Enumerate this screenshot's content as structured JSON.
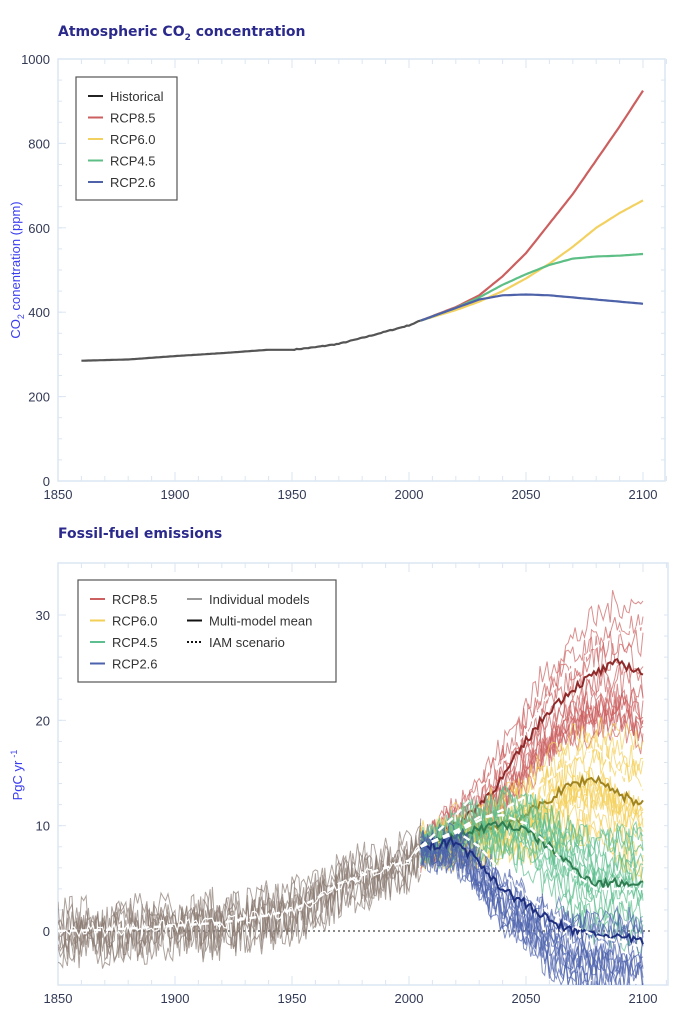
{
  "chart_data": [
    {
      "type": "line",
      "title": "Atmospheric CO",
      "title_sub": "2",
      "title_rest": " concentration",
      "xlabel": "",
      "ylabel": "CO",
      "ylabel_sub": "2",
      "ylabel_rest": " conentration (ppm)",
      "xlim": [
        1850,
        2110
      ],
      "ylim": [
        0,
        1000
      ],
      "xticks": [
        1850,
        1900,
        1950,
        2000,
        2050,
        2100
      ],
      "yticks": [
        0,
        200,
        400,
        600,
        800,
        1000
      ],
      "grid": false,
      "legend_position": "top-left",
      "series": [
        {
          "name": "Historical",
          "color": "#222222",
          "x": [
            1860,
            1880,
            1900,
            1920,
            1940,
            1950,
            1960,
            1970,
            1980,
            1990,
            2000,
            2005
          ],
          "y": [
            285,
            288,
            296,
            303,
            311,
            311,
            317,
            325,
            339,
            354,
            369,
            380
          ]
        },
        {
          "name": "RCP8.5",
          "color": "#cc5f5f",
          "x": [
            2005,
            2020,
            2030,
            2040,
            2050,
            2060,
            2070,
            2080,
            2090,
            2100
          ],
          "y": [
            380,
            412,
            440,
            485,
            540,
            610,
            680,
            760,
            840,
            925
          ]
        },
        {
          "name": "RCP6.0",
          "color": "#f3d160",
          "x": [
            2005,
            2020,
            2030,
            2040,
            2050,
            2060,
            2070,
            2080,
            2090,
            2100
          ],
          "y": [
            380,
            405,
            425,
            450,
            480,
            515,
            555,
            600,
            635,
            665
          ]
        },
        {
          "name": "RCP4.5",
          "color": "#5dbf85",
          "x": [
            2005,
            2020,
            2030,
            2040,
            2050,
            2060,
            2070,
            2080,
            2090,
            2100
          ],
          "y": [
            380,
            410,
            435,
            465,
            490,
            512,
            527,
            532,
            534,
            538
          ]
        },
        {
          "name": "RCP2.6",
          "color": "#4d62a8",
          "x": [
            2005,
            2020,
            2030,
            2040,
            2050,
            2060,
            2070,
            2080,
            2090,
            2100
          ],
          "y": [
            380,
            410,
            430,
            440,
            442,
            440,
            435,
            430,
            425,
            420
          ]
        }
      ]
    },
    {
      "type": "line",
      "title": "Fossil-fuel emissions",
      "xlabel": "",
      "ylabel": "PgC yr",
      "ylabel_sup": "-1",
      "xlim": [
        1850,
        2110
      ],
      "ylim": [
        -5,
        34.5
      ],
      "xticks": [
        1850,
        1900,
        1950,
        2000,
        2050,
        2100
      ],
      "yticks": [
        0,
        10,
        20,
        30
      ],
      "grid": false,
      "legend_position": "top-left",
      "legend": {
        "scenarios": [
          "RCP8.5",
          "RCP6.0",
          "RCP4.5",
          "RCP2.6"
        ],
        "styles": [
          "Individual models",
          "Multi-model mean",
          "IAM scenario"
        ]
      },
      "series": [
        {
          "name": "Historical",
          "color": "#8a7b72",
          "mean": {
            "x": [
              1850,
              1870,
              1900,
              1920,
              1940,
              1950,
              1960,
              1970,
              1980,
              1990,
              2000,
              2005
            ],
            "y": [
              0,
              0.1,
              0.5,
              0.8,
              1.5,
              2,
              3,
              4.5,
              5.3,
              6,
              6.7,
              8
            ]
          }
        },
        {
          "name": "RCP8.5",
          "color": "#cc5f5f",
          "mean_color": "#8e2a2a",
          "mean": {
            "x": [
              2005,
              2020,
              2030,
              2040,
              2050,
              2060,
              2070,
              2080,
              2090,
              2100
            ],
            "y": [
              8,
              10,
              12,
              14.5,
              18,
              21,
              23,
              24.5,
              25.5,
              24.5
            ]
          },
          "iam": {
            "x": [
              2005,
              2020,
              2030,
              2040,
              2050,
              2060,
              2070,
              2080,
              2090,
              2100
            ],
            "y": [
              8,
              11,
              13.5,
              16,
              19,
              22.5,
              25,
              27,
              28.3,
              29
            ]
          }
        },
        {
          "name": "RCP6.0",
          "color": "#f3cf55",
          "mean_color": "#a08420",
          "mean": {
            "x": [
              2005,
              2020,
              2030,
              2040,
              2050,
              2060,
              2070,
              2080,
              2090,
              2100
            ],
            "y": [
              8,
              9,
              9.5,
              10.2,
              11,
              12.5,
              14,
              14.5,
              13,
              12
            ]
          },
          "iam": {
            "x": [
              2005,
              2020,
              2030,
              2040,
              2050,
              2060,
              2070,
              2080,
              2090,
              2100
            ],
            "y": [
              8,
              9.3,
              10.5,
              11.5,
              12.8,
              14.5,
              16.3,
              17.5,
              15,
              13.5
            ]
          }
        },
        {
          "name": "RCP4.5",
          "color": "#5dbf8f",
          "mean_color": "#2f7d50",
          "mean": {
            "x": [
              2005,
              2020,
              2030,
              2040,
              2050,
              2060,
              2070,
              2080,
              2090,
              2100
            ],
            "y": [
              8,
              9,
              9.7,
              10.2,
              9.5,
              8,
              6,
              4.5,
              4.6,
              4.5
            ]
          },
          "iam": {
            "x": [
              2005,
              2020,
              2030,
              2040,
              2050,
              2060,
              2070,
              2080,
              2090,
              2100
            ],
            "y": [
              8,
              9.5,
              10.8,
              11,
              10.2,
              8,
              5.5,
              4,
              4,
              4
            ]
          }
        },
        {
          "name": "RCP2.6",
          "color": "#4d62ad",
          "mean_color": "#1f2f80",
          "mean": {
            "x": [
              2005,
              2020,
              2030,
              2040,
              2050,
              2060,
              2070,
              2080,
              2090,
              2100
            ],
            "y": [
              8,
              8.5,
              6.5,
              4,
              2.5,
              1,
              0,
              -0.3,
              -0.6,
              -1
            ]
          },
          "iam": {
            "x": [
              2005,
              2020,
              2030,
              2040,
              2050,
              2060,
              2070,
              2080,
              2090,
              2100
            ],
            "y": [
              8,
              9.5,
              8,
              5.5,
              3.5,
              1.8,
              0.5,
              -0.5,
              -1,
              -1.5
            ]
          }
        }
      ],
      "zero_line": 0
    }
  ]
}
